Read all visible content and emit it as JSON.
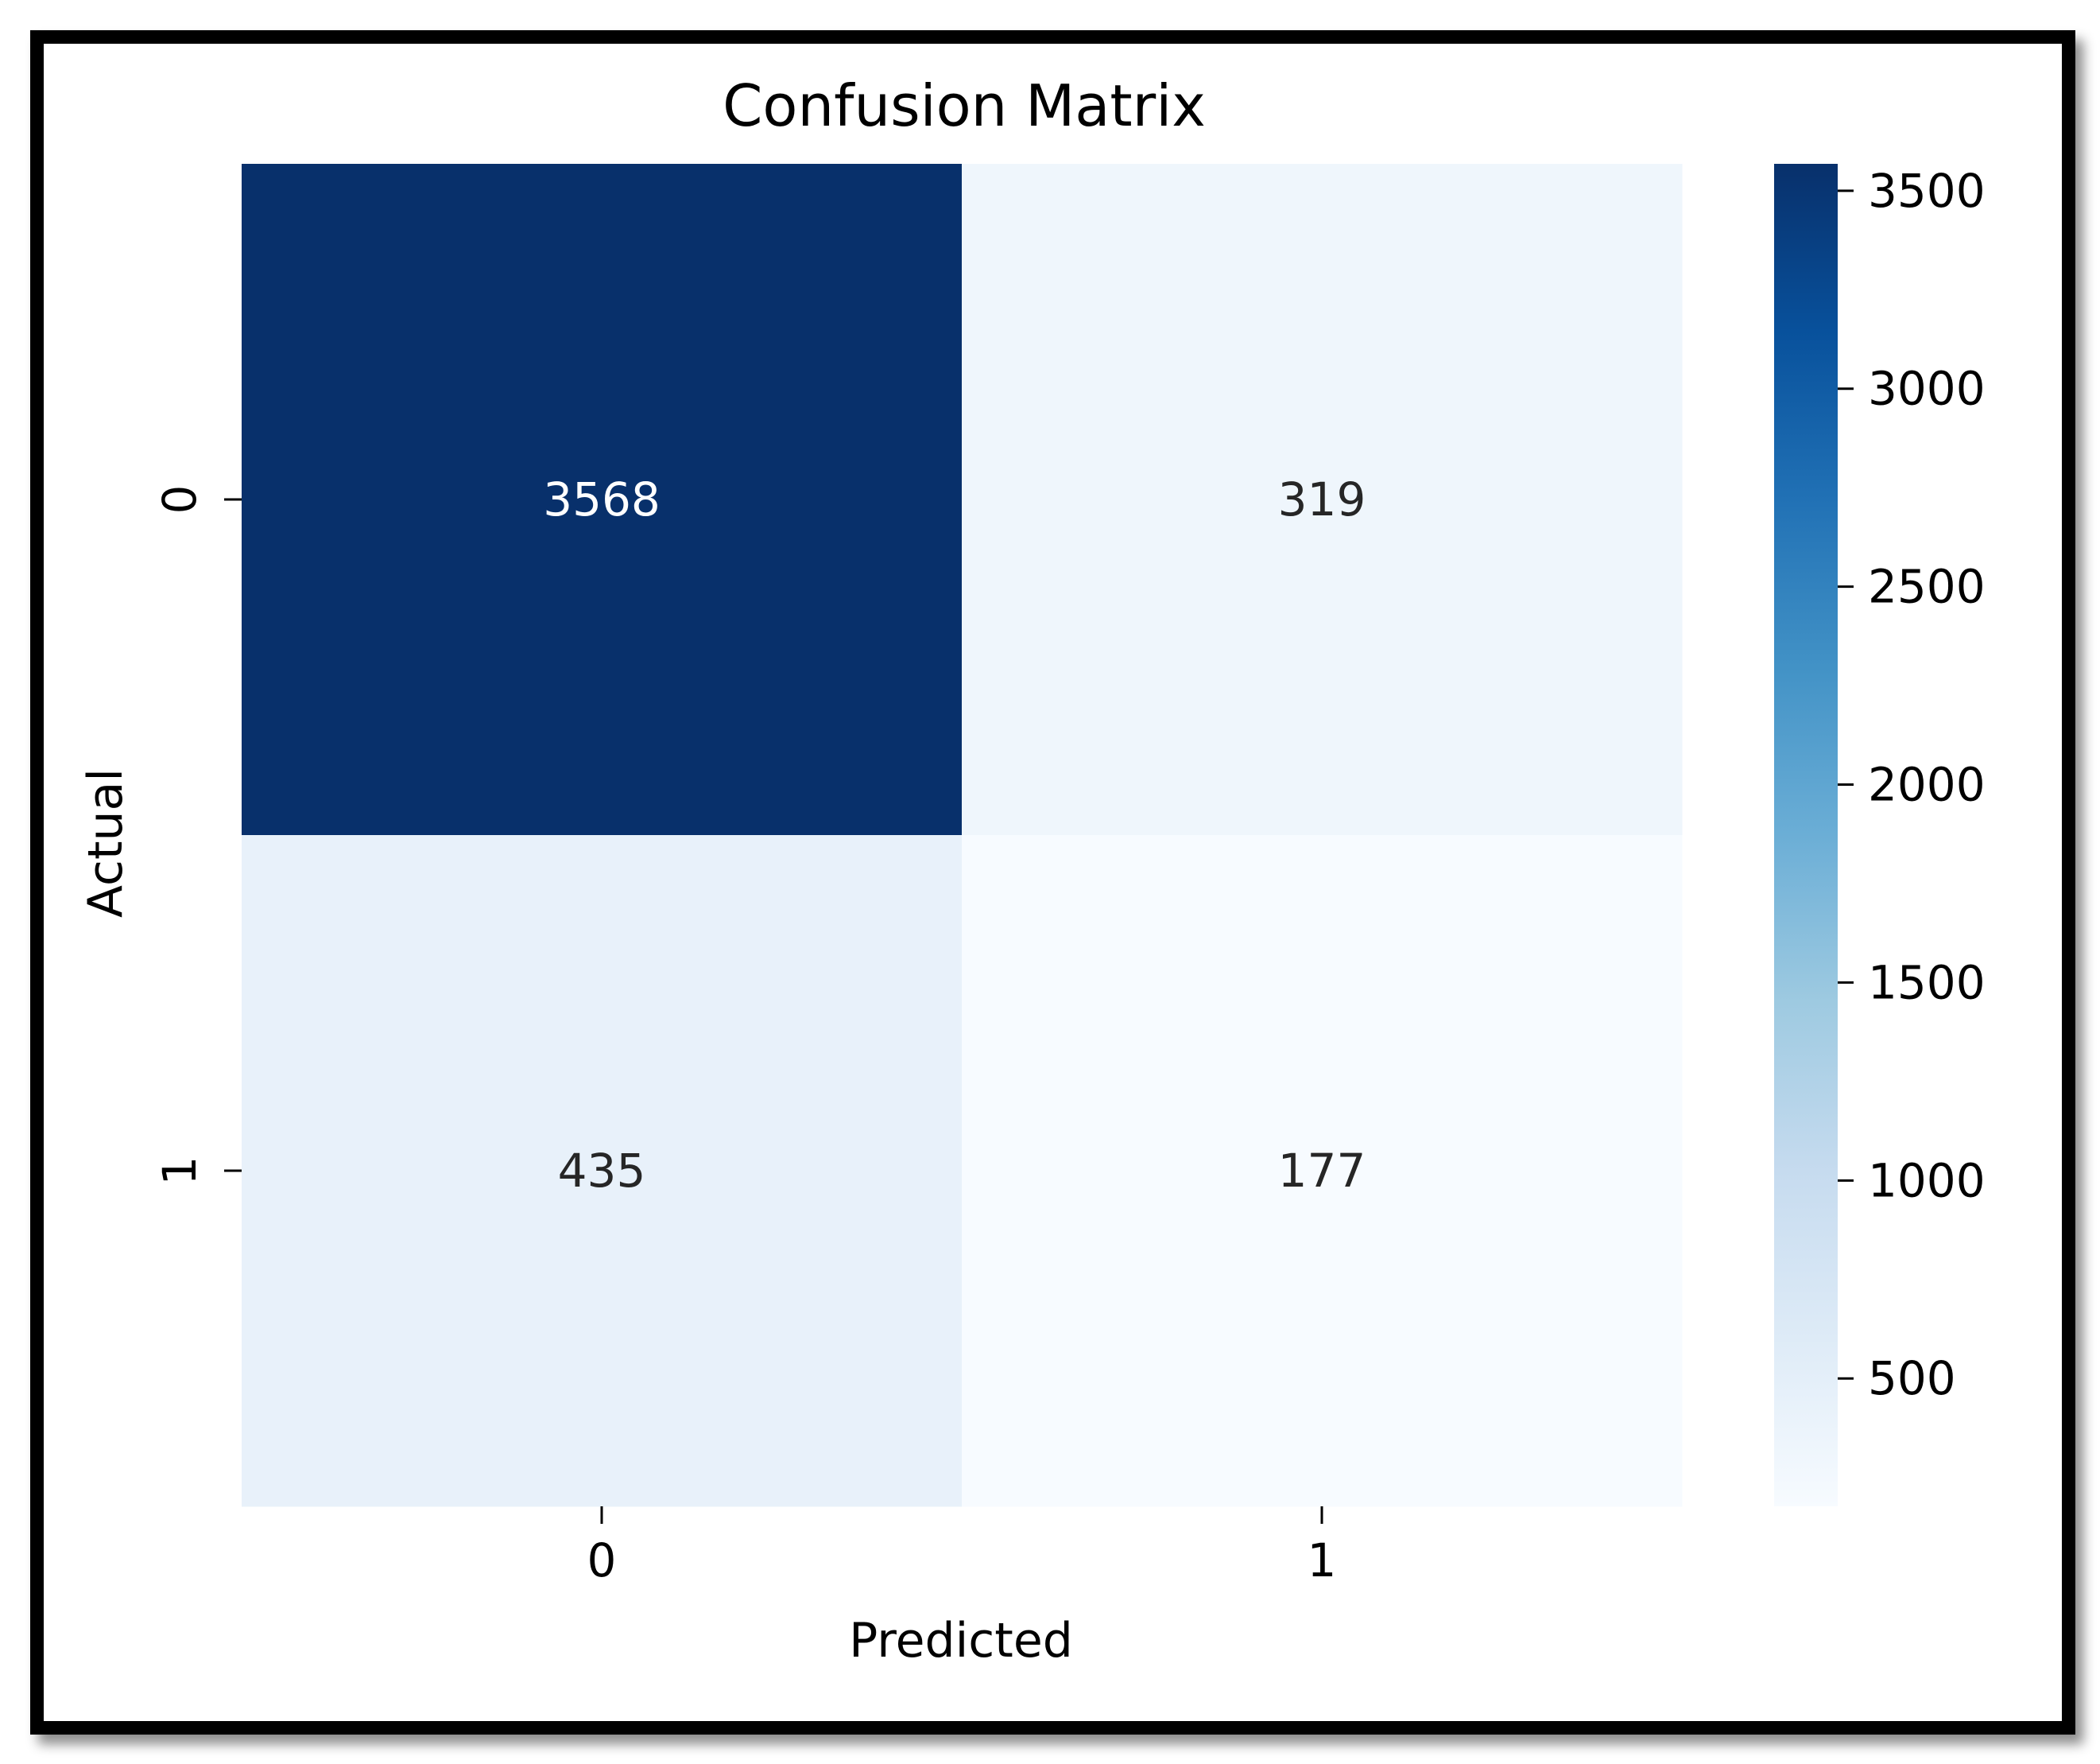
{
  "chart_data": {
    "type": "heatmap",
    "title": "Confusion Matrix",
    "xlabel": "Predicted",
    "ylabel": "Actual",
    "x_categories": [
      "0",
      "1"
    ],
    "y_categories": [
      "0",
      "1"
    ],
    "values": [
      [
        3568,
        319
      ],
      [
        435,
        177
      ]
    ],
    "colormap": "Blues",
    "colorbar": {
      "min": 177,
      "max": 3568,
      "ticks": [
        500,
        1000,
        1500,
        2000,
        2500,
        3000,
        3500
      ],
      "tick_labels": [
        "500",
        "1000",
        "1500",
        "2000",
        "2500",
        "3000",
        "3500"
      ]
    },
    "colors": {
      "dark_text": "#262626",
      "light_text": "#ffffff",
      "frame": "#000000"
    }
  }
}
